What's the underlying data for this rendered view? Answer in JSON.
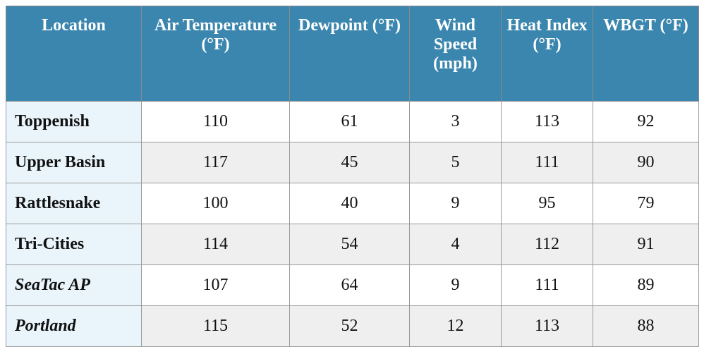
{
  "table": {
    "header": [
      "Location",
      "Air Temperature (°F)",
      "Dewpoint (°F)",
      "Wind Speed (mph)",
      "Heat Index (°F)",
      "WBGT (°F)"
    ],
    "rows": [
      [
        "Toppenish",
        110,
        61,
        3,
        113,
        92
      ],
      [
        "Upper Basin",
        117,
        45,
        5,
        111,
        90
      ],
      [
        "Rattlesnake",
        100,
        40,
        9,
        95,
        79
      ],
      [
        "Tri-Cities",
        114,
        54,
        4,
        112,
        91
      ],
      [
        "SeaTac AP",
        107,
        64,
        9,
        111,
        89
      ],
      [
        "Portland",
        115,
        52,
        12,
        113,
        88
      ]
    ]
  }
}
